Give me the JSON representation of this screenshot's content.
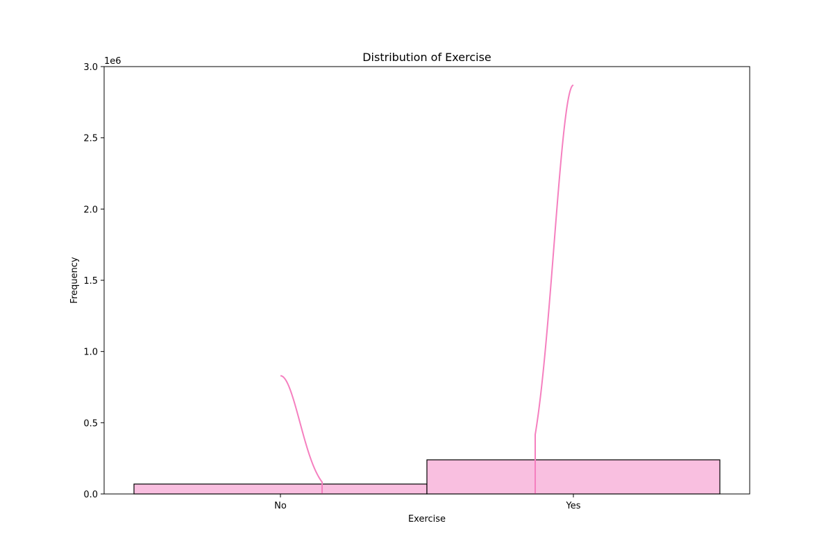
{
  "chart_data": {
    "type": "bar",
    "title": "Distribution of Exercise",
    "xlabel": "Exercise",
    "ylabel": "Frequency",
    "offset_text": "1e6",
    "categories": [
      "No",
      "Yes"
    ],
    "values": [
      69473,
      239376
    ],
    "ylim": [
      0,
      3000000
    ],
    "yticks": [
      0,
      500000,
      1000000,
      1500000,
      2000000,
      2500000,
      3000000
    ],
    "ytick_labels": [
      "0.0",
      "0.5",
      "1.0",
      "1.5",
      "2.0",
      "2.5",
      "3.0"
    ],
    "kde": {
      "No": {
        "peak": 830000,
        "direction": "right-decay"
      },
      "Yes": {
        "peak": 2870000,
        "direction": "left-rise"
      }
    },
    "grid": false,
    "legend": "none",
    "colors": {
      "bar_fill": "#f9bfe0",
      "bar_edge": "#000000",
      "kde_line": "#f57fbf"
    }
  }
}
